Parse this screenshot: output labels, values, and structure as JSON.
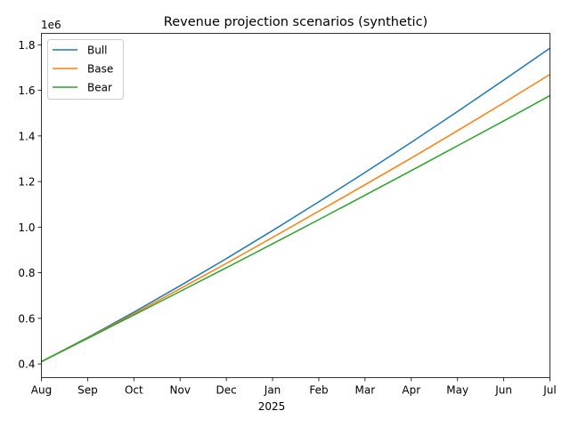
{
  "chart_data": {
    "type": "line",
    "title": "Revenue projection scenarios (synthetic)",
    "xlabel": "",
    "ylabel": "",
    "y_offset_label": "1e6",
    "x_tick_labels": [
      "Aug",
      "Sep",
      "Oct",
      "Nov",
      "Dec",
      "Jan",
      "Feb",
      "Mar",
      "Apr",
      "May",
      "Jun",
      "Jul"
    ],
    "x_year_label": "2025",
    "y_ticks": [
      0.4,
      0.6,
      0.8,
      1.0,
      1.2,
      1.4,
      1.6,
      1.8
    ],
    "y_tick_labels": [
      "0.4",
      "0.6",
      "0.8",
      "1.0",
      "1.2",
      "1.4",
      "1.6",
      "1.8"
    ],
    "ylim": [
      0.34,
      1.85
    ],
    "grid": false,
    "legend_position": "top-left",
    "x": [
      "Aug",
      "Sep",
      "Oct",
      "Nov",
      "Dec",
      "Jan",
      "Feb",
      "Mar",
      "Apr",
      "May",
      "Jun",
      "Jul"
    ],
    "series": [
      {
        "name": "Bull",
        "color": "#1f77b4",
        "values": [
          0.41,
          0.516,
          0.627,
          0.743,
          0.862,
          0.985,
          1.111,
          1.24,
          1.372,
          1.507,
          1.645,
          1.785
        ]
      },
      {
        "name": "Base",
        "color": "#ff7f0e",
        "values": [
          0.41,
          0.514,
          0.62,
          0.73,
          0.841,
          0.955,
          1.07,
          1.186,
          1.303,
          1.423,
          1.545,
          1.67
        ]
      },
      {
        "name": "Bear",
        "color": "#2ca02c",
        "values": [
          0.41,
          0.512,
          0.615,
          0.718,
          0.822,
          0.927,
          1.033,
          1.14,
          1.248,
          1.357,
          1.466,
          1.577
        ]
      }
    ]
  }
}
